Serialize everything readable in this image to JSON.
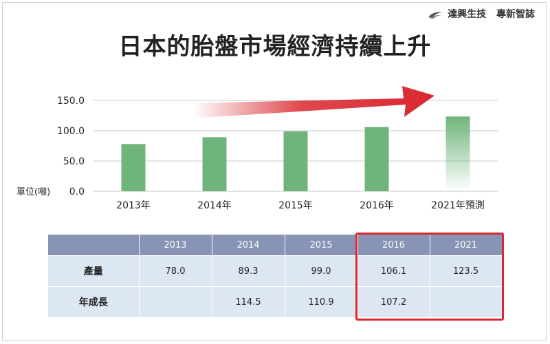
{
  "brand": {
    "name": "達興生技",
    "subtitle": "專新智誌"
  },
  "title": "日本的胎盤市場經濟持續上升",
  "chart_data": {
    "type": "bar",
    "categories": [
      "2013年",
      "2014年",
      "2015年",
      "2016年",
      "2021年預測"
    ],
    "values": [
      78.0,
      89.3,
      99.0,
      106.1,
      123.5
    ],
    "ylim": [
      0,
      150
    ],
    "yticks": [
      "0.0",
      "50.0",
      "100.0",
      "150.0"
    ],
    "ylabel": "單位(噸)",
    "bar_color": "#6fb47a",
    "arrow_color": "#d9282f",
    "grid": true
  },
  "table": {
    "headers": [
      "",
      "2013",
      "2014",
      "2015",
      "2016",
      "2021"
    ],
    "rows": [
      {
        "label": "產量",
        "values": [
          "78.0",
          "89.3",
          "99.0",
          "106.1",
          "123.5"
        ]
      },
      {
        "label": "年成長",
        "values": [
          "",
          "114.5",
          "110.9",
          "107.2",
          ""
        ]
      }
    ],
    "header_color": "#8794b5",
    "cell_color": "#dde6f3",
    "highlight_color": "#d9282f"
  }
}
